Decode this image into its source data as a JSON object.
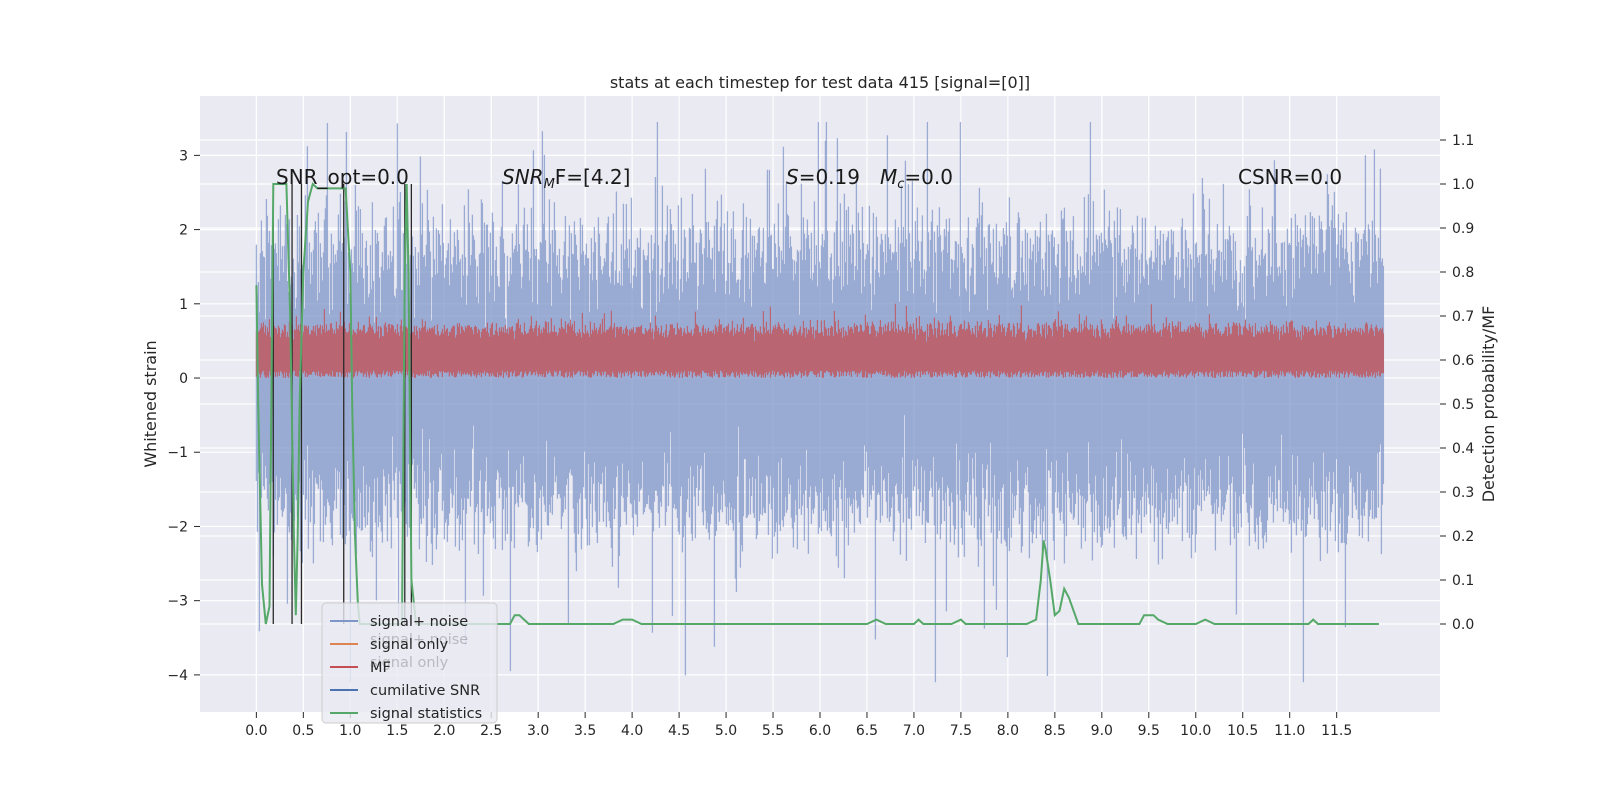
{
  "chart_data": {
    "type": "line",
    "title": "stats at each timestep for test data 415 [signal=[0]]",
    "ylabel": "Whitened strain",
    "y2label": "Detection probability/MF",
    "xlim": [
      -0.6,
      12.6
    ],
    "ylim": [
      -4.5,
      3.8
    ],
    "y2lim": [
      -0.2,
      1.2
    ],
    "xticks": [
      "0.0",
      "0.5",
      "1.0",
      "1.5",
      "2.0",
      "2.5",
      "3.0",
      "3.5",
      "4.0",
      "4.5",
      "5.0",
      "5.5",
      "6.0",
      "6.5",
      "7.0",
      "7.5",
      "8.0",
      "8.5",
      "9.0",
      "9.5",
      "10.0",
      "10.5",
      "11.0",
      "11.5"
    ],
    "yticks": [
      "3",
      "2",
      "1",
      "0",
      "−1",
      "−2",
      "−3",
      "−4"
    ],
    "y2ticks": [
      "1.1",
      "1.0",
      "0.9",
      "0.8",
      "0.7",
      "0.6",
      "0.5",
      "0.4",
      "0.3",
      "0.2",
      "0.1",
      "0.0"
    ],
    "grid": true,
    "legend_position": "lower-left",
    "annotations": {
      "snr_opt": "SNR_opt=0.0",
      "snr_mf_prefix": "SNR",
      "snr_mf_sub": "M",
      "snr_mf_suffix": "F=[4.2]",
      "s_prefix": "S",
      "s_value": "=0.19",
      "mc_prefix": "M",
      "mc_sub": "c",
      "mc_value": "=0.0",
      "csnr": "CSNR=0.0"
    },
    "legend": [
      {
        "key": "noise",
        "label": "signal+ noise",
        "color": "#7f96c8"
      },
      {
        "key": "signal",
        "label": "signal only",
        "color": "#dd8452"
      },
      {
        "key": "mf",
        "label": "MF",
        "color": "#c44e52"
      },
      {
        "key": "csnr",
        "label": "cumilative SNR",
        "color": "#4c72b0"
      },
      {
        "key": "stats",
        "label": "signal statistics",
        "color": "#55a868"
      }
    ],
    "ghost_labels": [
      "signal+ noise",
      "signal only"
    ],
    "noise_band": {
      "x_start": 0.0,
      "x_end": 12.0,
      "typical_low": -1.5,
      "typical_high": 1.5,
      "max_spike": 3.45,
      "min_spike": -4.1
    },
    "mf_band": {
      "typical_low": 0.0,
      "typical_high": 0.6,
      "max": 1.0
    },
    "cumulative_snr_lines_x": [
      0.18,
      0.38,
      0.48,
      0.93,
      1.58,
      1.65
    ],
    "signal_statistics": {
      "x": [
        0.0,
        0.02,
        0.06,
        0.1,
        0.14,
        0.18,
        0.2,
        0.24,
        0.28,
        0.32,
        0.36,
        0.4,
        0.42,
        0.44,
        0.46,
        0.5,
        0.55,
        0.6,
        0.65,
        0.7,
        0.8,
        0.9,
        0.95,
        1.0,
        1.02,
        1.05,
        1.08,
        1.1,
        1.2,
        1.4,
        1.55,
        1.58,
        1.6,
        1.62,
        1.65,
        1.7,
        1.8,
        2.0,
        2.5,
        2.7,
        2.75,
        2.8,
        2.85,
        2.9,
        3.0,
        3.5,
        3.8,
        3.9,
        4.0,
        4.1,
        5.0,
        6.0,
        6.5,
        6.6,
        6.7,
        6.8,
        7.0,
        7.05,
        7.1,
        7.2,
        7.3,
        7.4,
        7.5,
        7.55,
        7.6,
        7.8,
        8.0,
        8.2,
        8.3,
        8.35,
        8.38,
        8.4,
        8.45,
        8.5,
        8.55,
        8.6,
        8.65,
        8.7,
        8.75,
        8.8,
        9.0,
        9.3,
        9.4,
        9.45,
        9.5,
        9.55,
        9.6,
        9.7,
        9.8,
        10.0,
        10.1,
        10.2,
        10.5,
        11.0,
        11.2,
        11.25,
        11.3,
        11.5,
        11.8,
        11.9,
        11.95
      ],
      "y": [
        0.77,
        0.5,
        0.09,
        0.0,
        0.04,
        1.0,
        1.0,
        1.0,
        1.0,
        1.0,
        0.7,
        0.2,
        0.02,
        0.2,
        0.5,
        0.8,
        0.96,
        1.0,
        0.99,
        0.99,
        0.99,
        0.99,
        0.99,
        0.8,
        0.5,
        0.2,
        0.05,
        0.0,
        0.0,
        0.0,
        0.0,
        0.8,
        1.0,
        0.8,
        0.1,
        0.0,
        0.0,
        0.0,
        0.0,
        0.0,
        0.02,
        0.02,
        0.01,
        0.0,
        0.0,
        0.0,
        0.0,
        0.01,
        0.01,
        0.0,
        0.0,
        0.0,
        0.0,
        0.01,
        0.0,
        0.0,
        0.0,
        0.01,
        0.0,
        0.0,
        0.0,
        0.0,
        0.01,
        0.0,
        0.0,
        0.0,
        0.0,
        0.0,
        0.01,
        0.1,
        0.19,
        0.17,
        0.1,
        0.02,
        0.03,
        0.08,
        0.06,
        0.03,
        0.0,
        0.0,
        0.0,
        0.0,
        0.0,
        0.02,
        0.02,
        0.02,
        0.01,
        0.0,
        0.0,
        0.0,
        0.01,
        0.0,
        0.0,
        0.0,
        0.0,
        0.01,
        0.0,
        0.0,
        0.0,
        0.0,
        0.0
      ]
    }
  }
}
